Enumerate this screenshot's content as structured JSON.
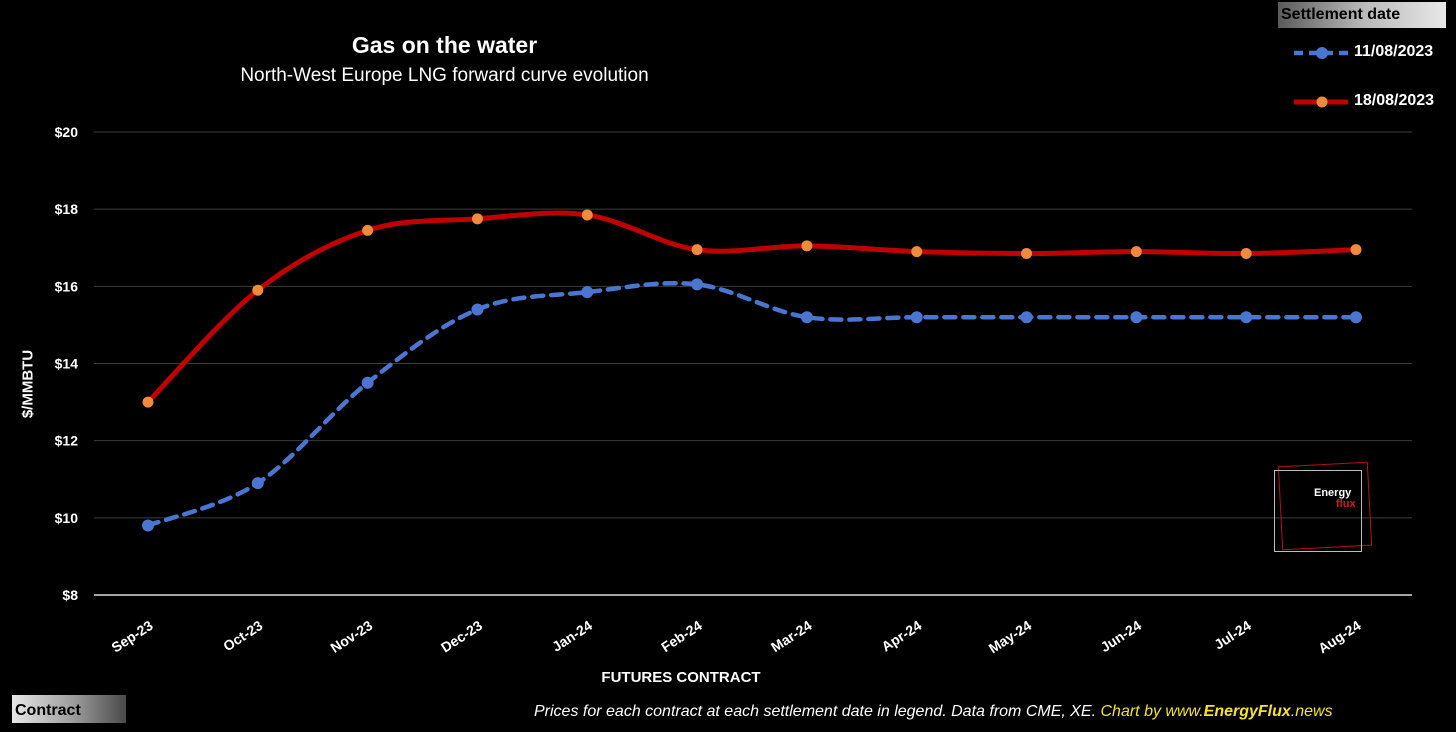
{
  "chart_data": {
    "type": "line",
    "title": "Gas on the water",
    "subtitle": "North-West Europe LNG forward curve evolution",
    "xlabel": "FUTURES CONTRACT",
    "ylabel": "$/MMBTU",
    "categories": [
      "Sep-23",
      "Oct-23",
      "Nov-23",
      "Dec-23",
      "Jan-24",
      "Feb-24",
      "Mar-24",
      "Apr-24",
      "May-24",
      "Jun-24",
      "Jul-24",
      "Aug-24"
    ],
    "ylim": [
      8,
      20
    ],
    "yticks": [
      8,
      10,
      12,
      14,
      16,
      18,
      20
    ],
    "ytick_labels": [
      "$8",
      "$10",
      "$12",
      "$14",
      "$16",
      "$18",
      "$20"
    ],
    "grid": true,
    "legend_title": "Settlement date",
    "legend_position": "top-right",
    "series": [
      {
        "name": "11/08/2023",
        "color": "#4a76d1",
        "marker_color": "#4a76d1",
        "style": "dashed",
        "values": [
          9.8,
          10.9,
          13.5,
          15.4,
          15.85,
          16.05,
          15.2,
          15.2,
          15.2,
          15.2,
          15.2,
          15.2
        ]
      },
      {
        "name": "18/08/2023",
        "color": "#c00000",
        "marker_color": "#f08a3c",
        "style": "solid",
        "values": [
          13.0,
          15.9,
          17.45,
          17.75,
          17.85,
          16.95,
          17.05,
          16.9,
          16.85,
          16.9,
          16.85,
          16.95
        ]
      }
    ]
  },
  "bottom_tag": "Contract",
  "footnote": {
    "text": "Prices for each contract at each settlement date in legend. Data from CME, XE. ",
    "credit_prefix": "Chart by www.",
    "credit_bold": "EnergyFlux",
    "credit_suffix": ".news"
  },
  "logo": {
    "word_a": "Energy",
    "word_b": "flux"
  }
}
